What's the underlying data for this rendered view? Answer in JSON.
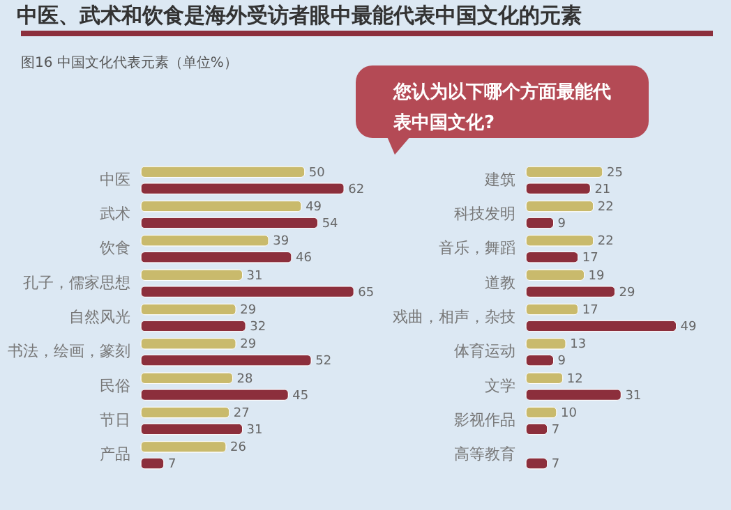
{
  "chart_data": [
    {
      "type": "bar",
      "orientation": "horizontal",
      "title": "中医、武术和饮食是海外受访者眼中最能代表中国文化的元素",
      "subtitle": "图16 中国文化代表元素（单位%）",
      "annotations": [
        "您认为以下哪个方面最能代表中国文化?"
      ],
      "categories": [
        "中医",
        "武术",
        "饮食",
        "孔子，儒家思想",
        "自然风光",
        "书法，绘画，篆刻",
        "民俗",
        "节日",
        "产品"
      ],
      "series": [
        {
          "color": "#c9ba6c",
          "values": [
            50,
            49,
            39,
            31,
            29,
            29,
            28,
            27,
            26
          ]
        },
        {
          "color": "#8c2f3c",
          "values": [
            62,
            54,
            46,
            65,
            32,
            52,
            45,
            31,
            7
          ]
        }
      ],
      "xlim": [
        0,
        66
      ],
      "tick_labels": "y",
      "data_labels": true
    },
    {
      "type": "bar",
      "orientation": "horizontal",
      "categories": [
        "建筑",
        "科技发明",
        "音乐，舞蹈",
        "道教",
        "戏曲，相声，杂技",
        "体育运动",
        "文学",
        "影视作品",
        "高等教育"
      ],
      "series": [
        {
          "color": "#c9ba6c",
          "values": [
            25,
            22,
            22,
            19,
            17,
            13,
            12,
            10,
            null
          ]
        },
        {
          "color": "#8c2f3c",
          "values": [
            21,
            9,
            17,
            29,
            49,
            9,
            31,
            7,
            7
          ]
        }
      ],
      "xlim": [
        0,
        50
      ],
      "tick_labels": "y",
      "data_labels": true
    }
  ]
}
